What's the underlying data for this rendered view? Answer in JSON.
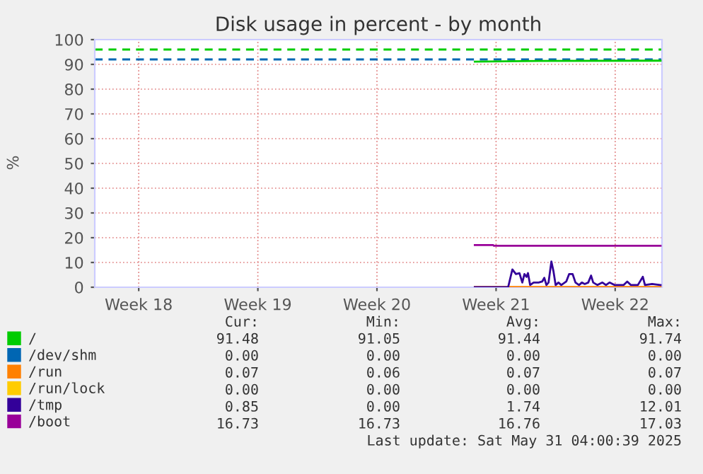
{
  "chart_data": {
    "type": "line",
    "title": "Disk usage in percent - by month",
    "ylabel": "%",
    "xlim": [
      "2025-04-27T22:00",
      "2025-05-31T06:00"
    ],
    "xticks": [
      {
        "value": "2025-04-30T12:00",
        "label": "Week 18"
      },
      {
        "value": "2025-05-07T12:00",
        "label": "Week 19"
      },
      {
        "value": "2025-05-14T12:00",
        "label": "Week 20"
      },
      {
        "value": "2025-05-21T12:00",
        "label": "Week 21"
      },
      {
        "value": "2025-05-28T12:00",
        "label": "Week 22"
      }
    ],
    "ylim": [
      0,
      100
    ],
    "yticks": [
      0,
      10,
      20,
      30,
      40,
      50,
      60,
      70,
      80,
      90,
      100
    ],
    "grid": true,
    "legend": "bottom left",
    "series": [
      {
        "name": "/",
        "color": "#00cc00",
        "x": [
          "2025-05-20T06:00",
          "2025-05-24T00:00",
          "2025-05-31T04:00"
        ],
        "values": [
          91.1,
          91.4,
          91.5
        ]
      },
      {
        "name": "/dev/shm",
        "color": "#0066b3"
      },
      {
        "name": "/run",
        "color": "#ff8000",
        "x": [
          "2025-05-20T06:00",
          "2025-05-31T04:00"
        ],
        "values": [
          0.07,
          0.07
        ]
      },
      {
        "name": "/run/lock",
        "color": "#ffcc00"
      },
      {
        "name": "/tmp",
        "color": "#330099",
        "x": [
          "2025-05-20T06:00",
          "2025-05-22T05:00",
          "2025-05-22T11:00",
          "2025-05-22T16:00",
          "2025-05-22T21:00",
          "2025-05-23T01:00",
          "2025-05-23T04:00",
          "2025-05-23T07:00",
          "2025-05-23T09:00",
          "2025-05-23T12:00",
          "2025-05-23T17:00",
          "2025-05-24T00:00",
          "2025-05-24T05:00",
          "2025-05-24T08:00",
          "2025-05-24T11:00",
          "2025-05-24T14:00",
          "2025-05-24T18:00",
          "2025-05-24T21:00",
          "2025-05-25T00:00",
          "2025-05-25T04:00",
          "2025-05-25T08:00",
          "2025-05-25T15:00",
          "2025-05-25T19:00",
          "2025-05-26T00:00",
          "2025-05-26T04:00",
          "2025-05-26T09:00",
          "2025-05-26T13:00",
          "2025-05-26T17:00",
          "2025-05-26T22:00",
          "2025-05-27T02:00",
          "2025-05-27T05:00",
          "2025-05-27T11:00",
          "2025-05-27T18:00",
          "2025-05-27T23:00",
          "2025-05-28T04:00",
          "2025-05-28T11:00",
          "2025-05-29T00:00",
          "2025-05-29T05:00",
          "2025-05-29T10:00",
          "2025-05-29T20:00",
          "2025-05-30T03:00",
          "2025-05-30T06:00",
          "2025-05-30T16:00",
          "2025-05-31T04:00"
        ],
        "values": [
          0,
          0,
          7.2,
          5.3,
          5.7,
          1.9,
          5.3,
          4.2,
          5.7,
          0.9,
          1.9,
          1.9,
          2.3,
          3.8,
          0.9,
          1.9,
          10.4,
          6.4,
          0.9,
          1.9,
          0.9,
          2.3,
          5.3,
          5.3,
          1.9,
          0.9,
          1.9,
          1.3,
          1.9,
          4.7,
          1.9,
          0.9,
          1.9,
          0.9,
          1.9,
          0.9,
          0.9,
          2.3,
          0.9,
          0.9,
          4.2,
          0.9,
          1.3,
          0.9
        ]
      },
      {
        "name": "/boot",
        "color": "#990099",
        "x": [
          "2025-05-20T06:00",
          "2025-05-21T08:00",
          "2025-05-21T09:00",
          "2025-05-31T04:00"
        ],
        "values": [
          17.03,
          17.03,
          16.73,
          16.73
        ]
      }
    ],
    "ref_lines": [
      {
        "axis": "y",
        "value": 96,
        "color": "#00cc00",
        "line_style": "dashed"
      },
      {
        "axis": "y",
        "value": 92,
        "color": "#0066b3",
        "line_style": "dashed"
      }
    ],
    "annotations": [
      "Cur:",
      "Min:",
      "Avg:",
      "Max:",
      "91.48",
      "91.05",
      "91.44",
      "91.74",
      "0.00",
      "0.00",
      "0.00",
      "0.00",
      "0.07",
      "0.06",
      "0.07",
      "0.07",
      "0.00",
      "0.00",
      "0.00",
      "0.00",
      "0.85",
      "0.00",
      "1.74",
      "12.01",
      "16.73",
      "16.73",
      "16.76",
      "17.03",
      "Last update: Sat May 31 04:00:39 2025"
    ]
  }
}
